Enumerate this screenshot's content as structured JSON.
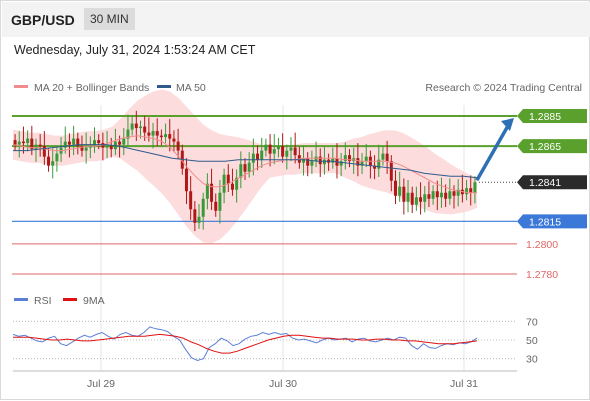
{
  "header": {
    "symbol": "GBP/USD",
    "timeframe": "30 MIN"
  },
  "timestamp": "Wednesday, July 31, 2024 1:53:24 AM CET",
  "legend": {
    "items": [
      {
        "label": "MA 20 + Bollinger Bands",
        "color": "#f28b8b"
      },
      {
        "label": "MA 50",
        "color": "#2e5a8c"
      }
    ],
    "credit": "Research © 2024 Trading Central"
  },
  "chart_data": {
    "type": "candlestick",
    "x_ticks": [
      "Jul 29",
      "Jul 30",
      "Jul 31"
    ],
    "y_range": [
      1.2772,
      1.2895
    ],
    "current_price": "1.2841",
    "current_value": 1.2841,
    "levels": [
      {
        "label": "1.2885",
        "value": 1.2885,
        "color": "#5aa02c",
        "style": "resistance"
      },
      {
        "label": "1.2865",
        "value": 1.2865,
        "color": "#5aa02c",
        "style": "resistance"
      },
      {
        "label": "1.2815",
        "value": 1.2815,
        "color": "#3c78d8",
        "style": "pivot"
      },
      {
        "label": "1.2800",
        "value": 1.28,
        "color": "#e06666",
        "style": "support"
      },
      {
        "label": "1.2780",
        "value": 1.278,
        "color": "#e06666",
        "style": "support"
      }
    ],
    "forecast_target": 1.2885,
    "closes": [
      1.2866,
      1.2868,
      1.2867,
      1.287,
      1.2863,
      1.2866,
      1.2865,
      1.2858,
      1.2852,
      1.2855,
      1.286,
      1.2864,
      1.2868,
      1.2866,
      1.287,
      1.2865,
      1.2862,
      1.2864,
      1.2866,
      1.2869,
      1.2867,
      1.2864,
      1.2865,
      1.2863,
      1.2868,
      1.2866,
      1.287,
      1.2876,
      1.288,
      1.2877,
      1.2878,
      1.2874,
      1.2872,
      1.2875,
      1.2872,
      1.2871,
      1.2873,
      1.287,
      1.2868,
      1.2862,
      1.285,
      1.2835,
      1.2823,
      1.2814,
      1.2818,
      1.283,
      1.284,
      1.2828,
      1.2822,
      1.2834,
      1.2846,
      1.284,
      1.2836,
      1.2844,
      1.2853,
      1.2848,
      1.2854,
      1.286,
      1.2856,
      1.2862,
      1.2866,
      1.286,
      1.2863,
      1.2865,
      1.2858,
      1.2862,
      1.2864,
      1.2859,
      1.2854,
      1.2857,
      1.2852,
      1.2855,
      1.2858,
      1.2853,
      1.2856,
      1.2854,
      1.2857,
      1.2852,
      1.2855,
      1.2859,
      1.2855,
      1.2857,
      1.2852,
      1.2855,
      1.2858,
      1.2852,
      1.285,
      1.2856,
      1.286,
      1.2855,
      1.2842,
      1.2832,
      1.2838,
      1.2828,
      1.2834,
      1.2826,
      1.2831,
      1.2828,
      1.2833,
      1.283,
      1.2835,
      1.2831,
      1.2834,
      1.283,
      1.2835,
      1.2832,
      1.2836,
      1.2833,
      1.2837,
      1.2834,
      1.2841
    ],
    "ma20": [
      1.2866,
      1.2865,
      1.2864,
      1.2864,
      1.2863,
      1.2862,
      1.2862,
      1.2863,
      1.2864,
      1.2865,
      1.2865,
      1.2866,
      1.2868,
      1.287,
      1.2871,
      1.2872,
      1.2871,
      1.287,
      1.2868,
      1.2864,
      1.2858,
      1.2851,
      1.2845,
      1.284,
      1.2838,
      1.2838,
      1.284,
      1.2843,
      1.2846,
      1.2849,
      1.2852,
      1.2854,
      1.2855,
      1.2856,
      1.2856,
      1.2857,
      1.2857,
      1.2857,
      1.2857,
      1.2857,
      1.2856,
      1.2856,
      1.2855,
      1.2855,
      1.2855,
      1.2855,
      1.2854,
      1.2852,
      1.2849,
      1.2846,
      1.2843,
      1.284,
      1.2838,
      1.2836,
      1.2835,
      1.2834,
      1.2834
    ],
    "ma50": [
      1.2862,
      1.2862,
      1.2863,
      1.2864,
      1.2865,
      1.2866,
      1.2866,
      1.2866,
      1.2865,
      1.2863,
      1.2861,
      1.2859,
      1.2857,
      1.2856,
      1.2855,
      1.2855,
      1.2855,
      1.2856,
      1.2856,
      1.2856,
      1.2856,
      1.2856,
      1.2856,
      1.2855,
      1.2855,
      1.2854,
      1.2853,
      1.2852,
      1.2851,
      1.285,
      1.2849,
      1.2847,
      1.2846,
      1.2845,
      1.2845,
      1.2844
    ],
    "rsi": {
      "label": "RSI",
      "ma_label": "9MA",
      "levels": [
        70,
        50,
        30
      ],
      "range": [
        20,
        80
      ],
      "values": [
        56,
        54,
        55,
        52,
        49,
        48,
        52,
        54,
        46,
        44,
        48,
        52,
        55,
        53,
        56,
        58,
        54,
        51,
        56,
        58,
        55,
        54,
        58,
        64,
        62,
        61,
        59,
        54,
        50,
        40,
        31,
        28,
        30,
        42,
        46,
        52,
        49,
        44,
        46,
        51,
        54,
        55,
        58,
        56,
        58,
        56,
        57,
        52,
        50,
        51,
        49,
        47,
        50,
        52,
        50,
        51,
        52,
        48,
        51,
        52,
        49,
        48,
        50,
        52,
        50,
        53,
        52,
        44,
        40,
        46,
        42,
        41,
        44,
        46,
        45,
        47,
        46,
        48,
        52
      ],
      "ma9": [
        53,
        53,
        53,
        52,
        51,
        50,
        50,
        51,
        50,
        49,
        49,
        50,
        51,
        52,
        53,
        54,
        54,
        54,
        55,
        56,
        55,
        54,
        52,
        48,
        45,
        41,
        38,
        36,
        36,
        38,
        41,
        44,
        47,
        50,
        52,
        54,
        55,
        55,
        54,
        53,
        52,
        52,
        51,
        51,
        51,
        50,
        50,
        51,
        51,
        50,
        50,
        49,
        49,
        48,
        47,
        46,
        46,
        46,
        47,
        48,
        49
      ]
    }
  }
}
